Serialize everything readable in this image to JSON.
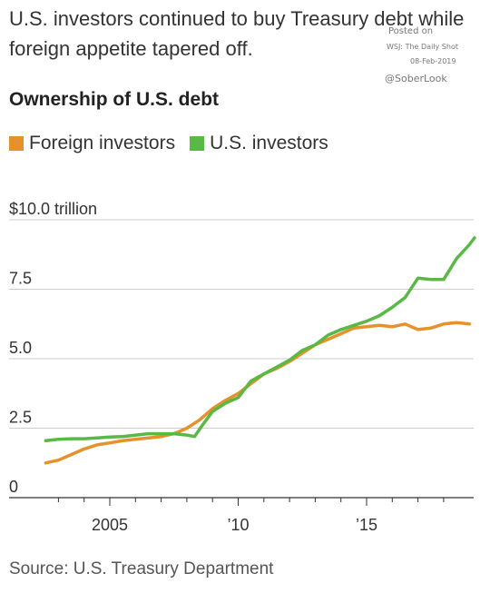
{
  "headline": "U.S. investors continued to buy Treasury debt while foreign appetite tapered off.",
  "watermark": {
    "posted": "Posted on",
    "source": "WSJ: The Daily Shot",
    "date": "08-Feb-2019",
    "handle": "@SoberLook"
  },
  "source_note": "Source: U.S. Treasury Department",
  "colors": {
    "foreign": "#e6922c",
    "us": "#5ab845",
    "grid": "#cccccc",
    "axis": "#333333"
  },
  "chart_data": {
    "type": "line",
    "title": "Ownership of U.S. debt",
    "xlabel": "",
    "ylabel": "",
    "y_unit": "trillion",
    "xlim": [
      2000,
      2019
    ],
    "ylim": [
      0,
      10
    ],
    "y_ticks": [
      {
        "value": 10,
        "label": "$10.0"
      },
      {
        "value": 7.5,
        "label": "7.5"
      },
      {
        "value": 5,
        "label": "5.0"
      },
      {
        "value": 2.5,
        "label": "2.5"
      },
      {
        "value": 0,
        "label": "0"
      }
    ],
    "x_ticks": [
      {
        "value": 2005,
        "label": "2005"
      },
      {
        "value": 2010,
        "label": "’10"
      },
      {
        "value": 2015,
        "label": "’15"
      }
    ],
    "x_minor_ticks": [
      2003,
      2004,
      2006,
      2007,
      2008,
      2009,
      2011,
      2012,
      2013,
      2014,
      2016,
      2017,
      2018
    ],
    "legend": "top-left",
    "grid": true,
    "series": [
      {
        "name": "Foreign investors",
        "color": "#e6922c",
        "points": [
          [
            2002.5,
            1.25
          ],
          [
            2003.0,
            1.35
          ],
          [
            2003.5,
            1.55
          ],
          [
            2004.0,
            1.75
          ],
          [
            2004.5,
            1.9
          ],
          [
            2005.0,
            1.97
          ],
          [
            2005.5,
            2.05
          ],
          [
            2006.0,
            2.1
          ],
          [
            2006.5,
            2.15
          ],
          [
            2007.0,
            2.2
          ],
          [
            2007.5,
            2.3
          ],
          [
            2008.0,
            2.5
          ],
          [
            2008.5,
            2.8
          ],
          [
            2009.0,
            3.2
          ],
          [
            2009.5,
            3.5
          ],
          [
            2010.0,
            3.75
          ],
          [
            2010.5,
            4.1
          ],
          [
            2011.0,
            4.45
          ],
          [
            2011.5,
            4.65
          ],
          [
            2012.0,
            4.9
          ],
          [
            2012.5,
            5.2
          ],
          [
            2013.0,
            5.5
          ],
          [
            2013.5,
            5.7
          ],
          [
            2014.0,
            5.9
          ],
          [
            2014.5,
            6.1
          ],
          [
            2015.0,
            6.15
          ],
          [
            2015.5,
            6.2
          ],
          [
            2016.0,
            6.15
          ],
          [
            2016.5,
            6.25
          ],
          [
            2017.0,
            6.05
          ],
          [
            2017.5,
            6.1
          ],
          [
            2018.0,
            6.25
          ],
          [
            2018.5,
            6.3
          ],
          [
            2019.0,
            6.25
          ]
        ]
      },
      {
        "name": "U.S. investors",
        "color": "#5ab845",
        "points": [
          [
            2002.5,
            2.05
          ],
          [
            2003.0,
            2.1
          ],
          [
            2003.5,
            2.12
          ],
          [
            2004.0,
            2.12
          ],
          [
            2004.5,
            2.15
          ],
          [
            2005.0,
            2.18
          ],
          [
            2005.5,
            2.2
          ],
          [
            2006.0,
            2.25
          ],
          [
            2006.5,
            2.3
          ],
          [
            2007.0,
            2.3
          ],
          [
            2007.5,
            2.3
          ],
          [
            2008.0,
            2.25
          ],
          [
            2008.3,
            2.2
          ],
          [
            2008.6,
            2.6
          ],
          [
            2009.0,
            3.1
          ],
          [
            2009.5,
            3.4
          ],
          [
            2010.0,
            3.6
          ],
          [
            2010.5,
            4.2
          ],
          [
            2011.0,
            4.45
          ],
          [
            2011.5,
            4.7
          ],
          [
            2012.0,
            4.95
          ],
          [
            2012.5,
            5.3
          ],
          [
            2013.0,
            5.5
          ],
          [
            2013.5,
            5.85
          ],
          [
            2014.0,
            6.05
          ],
          [
            2014.5,
            6.2
          ],
          [
            2015.0,
            6.35
          ],
          [
            2015.5,
            6.55
          ],
          [
            2016.0,
            6.85
          ],
          [
            2016.5,
            7.2
          ],
          [
            2017.0,
            7.9
          ],
          [
            2017.5,
            7.85
          ],
          [
            2018.0,
            7.85
          ],
          [
            2018.5,
            8.6
          ],
          [
            2019.0,
            9.1
          ],
          [
            2019.2,
            9.35
          ]
        ]
      }
    ]
  }
}
